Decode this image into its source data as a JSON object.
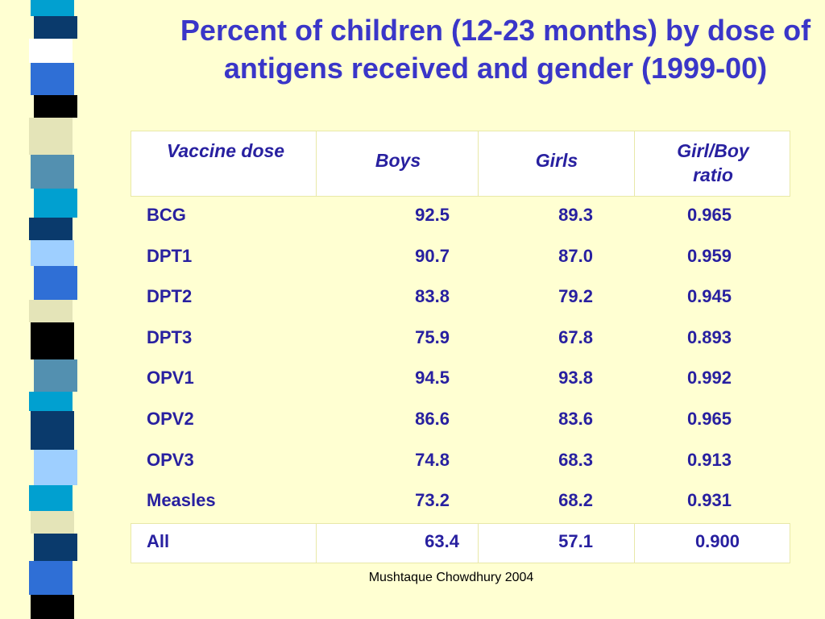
{
  "title": "Percent of children (12-23 months) by dose of antigens received and gender (1999-00)",
  "table": {
    "headers": [
      "Vaccine dose",
      "Boys",
      "Girls",
      "Girl/Boy ratio"
    ],
    "rows": [
      [
        "BCG",
        "92.5",
        "89.3",
        "0.965"
      ],
      [
        "DPT1",
        "90.7",
        "87.0",
        "0.959"
      ],
      [
        "DPT2",
        "83.8",
        "79.2",
        "0.945"
      ],
      [
        "DPT3",
        "75.9",
        "67.8",
        "0.893"
      ],
      [
        "OPV1",
        "94.5",
        "93.8",
        "0.992"
      ],
      [
        "OPV2",
        "86.6",
        "83.6",
        "0.965"
      ],
      [
        "OPV3",
        "74.8",
        "68.3",
        "0.913"
      ],
      [
        "Measles",
        "73.2",
        "68.2",
        "0.931"
      ]
    ],
    "total_row": [
      "All",
      "63.4",
      "57.1",
      "0.900"
    ]
  },
  "footer": "Mushtaque Chowdhury 2004",
  "colors": {
    "background": "#ffffd2",
    "title": "#3a36c8",
    "table_text": "#2820a0",
    "sidebar_strips": [
      "#01a0d0",
      "#0a3a6c",
      "#ffffff",
      "#2f6fd6",
      "#e4e4b8",
      "#5390b0",
      "#9ecfff",
      "#000000"
    ]
  }
}
